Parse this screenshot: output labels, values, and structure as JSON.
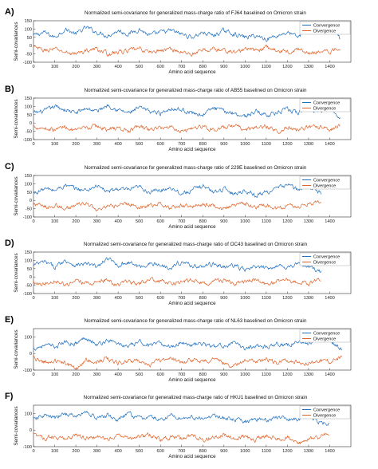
{
  "colors": {
    "convergence": "#1f6fbf",
    "divergence": "#e0642a",
    "axis": "#333333"
  },
  "chart_data": [
    {
      "panel": "A)",
      "type": "line",
      "title": "Normalized semi-covariance for generalized mass-charge ratio of FJ64 baselined on Omicron strain",
      "xlabel": "Amino acid sequence",
      "ylabel": "Semi-covariances",
      "xlim": [
        0,
        1500
      ],
      "ylim": [
        -100,
        150
      ],
      "xticks": [
        0,
        100,
        200,
        300,
        400,
        500,
        600,
        700,
        800,
        900,
        1000,
        1100,
        1200,
        1300,
        1400
      ],
      "yticks": [
        -100,
        -50,
        0,
        50,
        100,
        150
      ],
      "legend": "top-right",
      "series_length": 1450,
      "series": [
        {
          "name": "Convergence",
          "color": "#1f6fbf",
          "x": [
            0,
            50,
            100,
            150,
            200,
            250,
            300,
            350,
            400,
            450,
            500,
            550,
            600,
            650,
            700,
            750,
            800,
            850,
            900,
            950,
            1000,
            1050,
            1100,
            1150,
            1200,
            1250,
            1300,
            1350,
            1400,
            1450
          ],
          "y": [
            60,
            80,
            50,
            100,
            70,
            110,
            80,
            60,
            90,
            70,
            100,
            60,
            80,
            90,
            70,
            50,
            80,
            60,
            90,
            70,
            50,
            60,
            40,
            60,
            80,
            50,
            110,
            90,
            120,
            40
          ]
        },
        {
          "name": "Divergence",
          "color": "#e0642a",
          "x": [
            0,
            50,
            100,
            150,
            200,
            250,
            300,
            350,
            400,
            450,
            500,
            550,
            600,
            650,
            700,
            750,
            800,
            850,
            900,
            950,
            1000,
            1050,
            1100,
            1150,
            1200,
            1250,
            1300,
            1350,
            1400,
            1450
          ],
          "y": [
            -10,
            -30,
            -20,
            -40,
            -50,
            -30,
            -20,
            -50,
            -40,
            -30,
            -20,
            -40,
            -30,
            -20,
            -40,
            -50,
            -30,
            -20,
            -30,
            -40,
            -20,
            -30,
            -10,
            -30,
            -40,
            -20,
            -50,
            -30,
            -40,
            -10
          ]
        }
      ]
    },
    {
      "panel": "B)",
      "type": "line",
      "title": "Normalized semi-covariance for generalized mass-charge ratio of AB55 baselined on Omicron strain",
      "xlabel": "Amino acid sequence",
      "ylabel": "Semi-covariances",
      "xlim": [
        0,
        1500
      ],
      "ylim": [
        -100,
        150
      ],
      "xticks": [
        0,
        100,
        200,
        300,
        400,
        500,
        600,
        700,
        800,
        900,
        1000,
        1100,
        1200,
        1300,
        1400
      ],
      "yticks": [
        -100,
        -50,
        0,
        50,
        100,
        150
      ],
      "legend": "top-right",
      "series_length": 1450,
      "series": [
        {
          "name": "Convergence",
          "color": "#1f6fbf",
          "x": [
            0,
            50,
            100,
            150,
            200,
            250,
            300,
            350,
            400,
            450,
            500,
            550,
            600,
            650,
            700,
            750,
            800,
            850,
            900,
            950,
            1000,
            1050,
            1100,
            1150,
            1200,
            1250,
            1300,
            1350,
            1400,
            1450
          ],
          "y": [
            60,
            70,
            100,
            80,
            60,
            90,
            70,
            110,
            80,
            60,
            90,
            70,
            60,
            90,
            80,
            60,
            50,
            90,
            70,
            60,
            40,
            70,
            50,
            60,
            80,
            60,
            90,
            70,
            100,
            40
          ]
        },
        {
          "name": "Divergence",
          "color": "#e0642a",
          "x": [
            0,
            50,
            100,
            150,
            200,
            250,
            300,
            350,
            400,
            450,
            500,
            550,
            600,
            650,
            700,
            750,
            800,
            850,
            900,
            950,
            1000,
            1050,
            1100,
            1150,
            1200,
            1250,
            1300,
            1350,
            1400,
            1450
          ],
          "y": [
            -20,
            -30,
            -40,
            -20,
            -50,
            -30,
            -20,
            -40,
            -30,
            -50,
            -20,
            -40,
            -30,
            -20,
            -50,
            -30,
            -20,
            -40,
            -30,
            -20,
            -40,
            -30,
            -20,
            -50,
            -30,
            -40,
            -30,
            -20,
            -40,
            -10
          ]
        }
      ]
    },
    {
      "panel": "C)",
      "type": "line",
      "title": "Normalized semi-covariance for generalized mass-charge ratio of 229E baselined on Omicron strain",
      "xlabel": "Amino acid sequence",
      "ylabel": "Semi-covariances",
      "xlim": [
        0,
        1500
      ],
      "ylim": [
        -100,
        150
      ],
      "xticks": [
        0,
        100,
        200,
        300,
        400,
        500,
        600,
        700,
        800,
        900,
        1000,
        1100,
        1200,
        1300,
        1400
      ],
      "yticks": [
        -100,
        -50,
        0,
        50,
        100,
        150
      ],
      "legend": "top-right",
      "series_length": 1360,
      "series": [
        {
          "name": "Convergence",
          "color": "#1f6fbf",
          "x": [
            0,
            50,
            100,
            150,
            200,
            250,
            300,
            350,
            400,
            450,
            500,
            550,
            600,
            650,
            700,
            750,
            800,
            850,
            900,
            950,
            1000,
            1050,
            1100,
            1150,
            1200,
            1250,
            1300,
            1360
          ],
          "y": [
            40,
            70,
            60,
            90,
            70,
            60,
            90,
            50,
            70,
            60,
            80,
            50,
            60,
            80,
            40,
            60,
            90,
            50,
            70,
            40,
            60,
            30,
            50,
            70,
            100,
            60,
            90,
            40
          ]
        },
        {
          "name": "Divergence",
          "color": "#e0642a",
          "x": [
            0,
            50,
            100,
            150,
            200,
            250,
            300,
            350,
            400,
            450,
            500,
            550,
            600,
            650,
            700,
            750,
            800,
            850,
            900,
            950,
            1000,
            1050,
            1100,
            1150,
            1200,
            1250,
            1300,
            1360
          ],
          "y": [
            -20,
            -40,
            -30,
            -50,
            -30,
            -20,
            -60,
            -40,
            -30,
            -20,
            -40,
            -30,
            -20,
            -50,
            -30,
            -40,
            -20,
            -30,
            -50,
            -30,
            -20,
            -40,
            -30,
            -50,
            -30,
            -40,
            -20,
            -10
          ]
        }
      ]
    },
    {
      "panel": "D)",
      "type": "line",
      "title": "Normalized semi-covariance for generalized mass-charge ratio of OC43 baselined on Omicron strain",
      "xlabel": "Amino acid sequence",
      "ylabel": "Semi-covariances",
      "xlim": [
        0,
        1500
      ],
      "ylim": [
        -100,
        150
      ],
      "xticks": [
        0,
        100,
        200,
        300,
        400,
        500,
        600,
        700,
        800,
        900,
        1000,
        1100,
        1200,
        1300,
        1400
      ],
      "yticks": [
        -100,
        -50,
        0,
        50,
        100,
        150
      ],
      "legend": "top-right",
      "series_length": 1360,
      "series": [
        {
          "name": "Convergence",
          "color": "#1f6fbf",
          "x": [
            0,
            50,
            100,
            150,
            200,
            250,
            300,
            350,
            400,
            450,
            500,
            550,
            600,
            650,
            700,
            750,
            800,
            850,
            900,
            950,
            1000,
            1050,
            1100,
            1150,
            1200,
            1250,
            1300,
            1360
          ],
          "y": [
            70,
            90,
            60,
            100,
            70,
            80,
            60,
            110,
            70,
            90,
            60,
            80,
            70,
            60,
            90,
            70,
            60,
            80,
            60,
            70,
            40,
            60,
            50,
            70,
            60,
            80,
            60,
            30
          ]
        },
        {
          "name": "Divergence",
          "color": "#e0642a",
          "x": [
            0,
            50,
            100,
            150,
            200,
            250,
            300,
            350,
            400,
            450,
            500,
            550,
            600,
            650,
            700,
            750,
            800,
            850,
            900,
            950,
            1000,
            1050,
            1100,
            1150,
            1200,
            1250,
            1300,
            1360
          ],
          "y": [
            -30,
            -40,
            -20,
            -50,
            -30,
            -40,
            -30,
            -20,
            -50,
            -30,
            -40,
            -20,
            -30,
            -40,
            -30,
            -20,
            -40,
            -30,
            -20,
            -40,
            -30,
            -20,
            -40,
            -30,
            -20,
            -30,
            -40,
            -10
          ]
        }
      ]
    },
    {
      "panel": "E)",
      "type": "line",
      "title": "Normalized semi-covariance for generalized mass-charge ratio of NL63 baselined on Omicron strain",
      "xlabel": "Amino acid sequence",
      "ylabel": "Semi-covariances",
      "xlim": [
        0,
        1500
      ],
      "ylim": [
        -100,
        150
      ],
      "xticks": [
        0,
        100,
        200,
        300,
        400,
        500,
        600,
        700,
        800,
        900,
        1000,
        1100,
        1200,
        1300,
        1400
      ],
      "yticks": [
        -100,
        0,
        100
      ],
      "legend": "top-right",
      "series_length": 1460,
      "series": [
        {
          "name": "Convergence",
          "color": "#1f6fbf",
          "x": [
            0,
            50,
            100,
            150,
            200,
            250,
            300,
            350,
            400,
            450,
            500,
            550,
            600,
            650,
            700,
            750,
            800,
            850,
            900,
            950,
            1000,
            1050,
            1100,
            1150,
            1200,
            1250,
            1300,
            1350,
            1400,
            1460
          ],
          "y": [
            30,
            50,
            40,
            70,
            60,
            100,
            50,
            80,
            60,
            40,
            70,
            50,
            60,
            40,
            70,
            50,
            60,
            40,
            50,
            60,
            30,
            50,
            40,
            60,
            50,
            70,
            60,
            100,
            80,
            20
          ]
        },
        {
          "name": "Divergence",
          "color": "#e0642a",
          "x": [
            0,
            50,
            100,
            150,
            200,
            250,
            300,
            350,
            400,
            450,
            500,
            550,
            600,
            650,
            700,
            750,
            800,
            850,
            900,
            950,
            1000,
            1050,
            1100,
            1150,
            1200,
            1250,
            1300,
            1350,
            1400,
            1460
          ],
          "y": [
            -30,
            -50,
            -40,
            -60,
            -90,
            -40,
            -50,
            -30,
            -60,
            -40,
            -50,
            -70,
            -40,
            -30,
            -60,
            -40,
            -50,
            -30,
            -60,
            -80,
            -40,
            -50,
            -30,
            -60,
            -40,
            -50,
            -60,
            -40,
            -50,
            -20
          ]
        }
      ]
    },
    {
      "panel": "F)",
      "type": "line",
      "title": "Normalized semi-covariance for generalized mass-charge ratio of HKU1 baselined on Omicron strain",
      "xlabel": "Amino acid sequence",
      "ylabel": "Semi-covariances",
      "xlim": [
        0,
        1500
      ],
      "ylim": [
        -100,
        150
      ],
      "xticks": [
        0,
        100,
        200,
        300,
        400,
        500,
        600,
        700,
        800,
        900,
        1000,
        1100,
        1200,
        1300,
        1400
      ],
      "yticks": [
        -100,
        0,
        100
      ],
      "legend": "top-right",
      "series_length": 1400,
      "series": [
        {
          "name": "Convergence",
          "color": "#1f6fbf",
          "x": [
            0,
            50,
            100,
            150,
            200,
            250,
            300,
            350,
            400,
            450,
            500,
            550,
            600,
            650,
            700,
            750,
            800,
            850,
            900,
            950,
            1000,
            1050,
            1100,
            1150,
            1200,
            1250,
            1300,
            1350,
            1400
          ],
          "y": [
            60,
            90,
            70,
            100,
            80,
            110,
            70,
            90,
            60,
            100,
            70,
            80,
            60,
            90,
            70,
            80,
            60,
            90,
            70,
            60,
            50,
            70,
            60,
            80,
            70,
            60,
            90,
            50,
            40
          ]
        },
        {
          "name": "Divergence",
          "color": "#e0642a",
          "x": [
            0,
            50,
            100,
            150,
            200,
            250,
            300,
            350,
            400,
            450,
            500,
            550,
            600,
            650,
            700,
            750,
            800,
            850,
            900,
            950,
            1000,
            1050,
            1100,
            1150,
            1200,
            1250,
            1300,
            1350,
            1400
          ],
          "y": [
            -30,
            -50,
            -40,
            -60,
            -30,
            -50,
            -40,
            -60,
            -30,
            -50,
            -40,
            -30,
            -60,
            -40,
            -50,
            -30,
            -60,
            -40,
            -30,
            -50,
            -40,
            -60,
            -30,
            -50,
            -40,
            -90,
            -50,
            -40,
            -20
          ]
        }
      ]
    }
  ]
}
